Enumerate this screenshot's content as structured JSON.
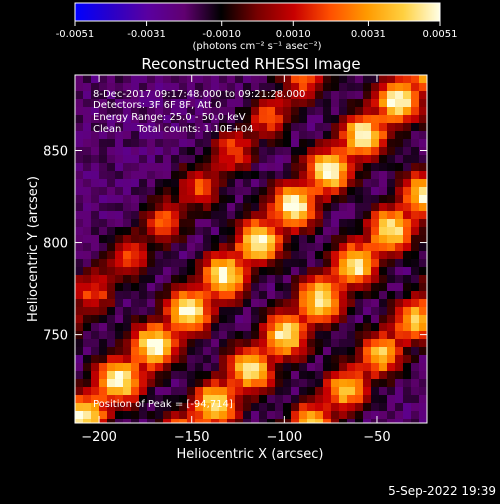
{
  "colorbar": {
    "tick_labels": [
      "-0.0051",
      "-0.0031",
      "-0.0010",
      "0.0010",
      "0.0031",
      "0.0051"
    ],
    "tick_values": [
      -0.0051,
      -0.0031,
      -0.001,
      0.001,
      0.0031,
      0.0051
    ],
    "range": [
      -0.0051,
      0.0051
    ],
    "unit_label": "(photons cm⁻² s⁻¹ asec⁻²)"
  },
  "chart_data": {
    "type": "heatmap",
    "title": "Reconstructed RHESSI Image",
    "xlabel": "Heliocentric X (arcsec)",
    "ylabel": "Heliocentric Y (arcsec)",
    "xlim": [
      -213,
      -23
    ],
    "ylim": [
      702,
      891
    ],
    "x_ticks": [
      -200,
      -150,
      -100,
      -50
    ],
    "y_ticks": [
      750,
      800,
      850
    ],
    "x_tick_labels": [
      "−200",
      "−150",
      "−100",
      "−50"
    ],
    "y_tick_labels": [
      "750",
      "800",
      "850"
    ],
    "annotations": {
      "time_range": "8-Dec-2017 09:17:48.000 to 09:21:28.000",
      "detectors": "Detectors: 3F 6F 8F, Att 0",
      "energy": "Energy Range: 25.0 - 50.0 keV",
      "clean": "Clean     Total counts: 1.10E+04",
      "peak": "Position of Peak = [-94,714]"
    },
    "colormap": [
      "#0000ff",
      "#2a00c8",
      "#5a00a0",
      "#600070",
      "#000000",
      "#780000",
      "#c80000",
      "#ff5000",
      "#ff9a00",
      "#ffd040",
      "#ffffe6"
    ]
  },
  "footer": {
    "timestamp": "5-Sep-2022 19:39"
  }
}
